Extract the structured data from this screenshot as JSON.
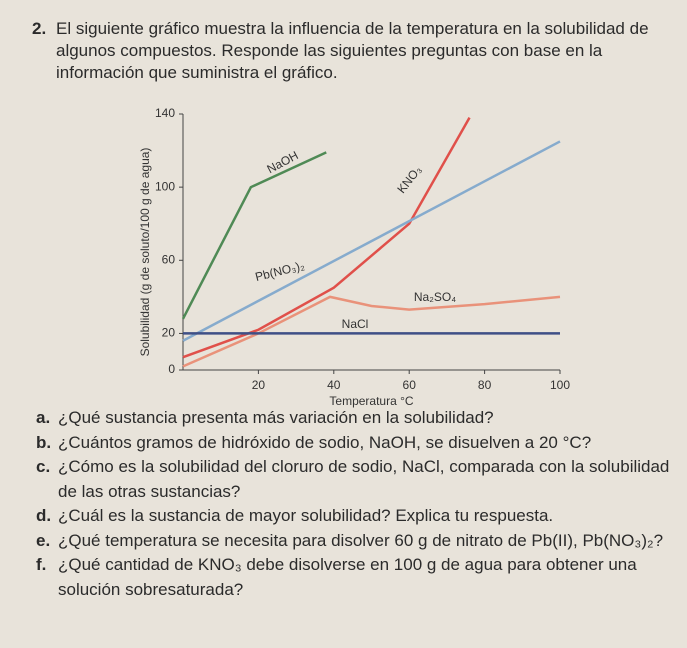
{
  "question": {
    "number": "2.",
    "text": "El siguiente gráfico muestra la influencia de la temperatura en la solubilidad de algunos compuestos. Responde las siguientes preguntas con base en la información que suministra el gráfico."
  },
  "chart_data": {
    "type": "line",
    "x_label": "Temperatura °C",
    "y_label": "Solubilidad (g de soluto/100 g de agua)",
    "xlim": [
      0,
      100
    ],
    "ylim": [
      0,
      140
    ],
    "xticks": [
      20,
      40,
      60,
      80,
      100
    ],
    "yticks": [
      0,
      20,
      60,
      100,
      140
    ],
    "series": [
      {
        "name": "NaOH",
        "color": "#4f8a55",
        "x": [
          0,
          18,
          38
        ],
        "values": [
          28,
          100,
          119
        ]
      },
      {
        "name": "KNO₃",
        "color": "#e0504a",
        "x": [
          0,
          20,
          40,
          60,
          76
        ],
        "values": [
          7,
          22,
          45,
          80,
          138
        ]
      },
      {
        "name": "Pb(NO₃)₂",
        "color": "#86abcd",
        "x": [
          0,
          100
        ],
        "values": [
          16,
          125
        ]
      },
      {
        "name": "Na₂SO₄",
        "color": "#e9927a",
        "x": [
          0,
          20,
          39,
          50,
          60,
          80,
          100
        ],
        "values": [
          2,
          20,
          40,
          35,
          33,
          36,
          40
        ]
      },
      {
        "name": "NaCl",
        "color": "#3e4f86",
        "x": [
          0,
          100
        ],
        "values": [
          20,
          20
        ]
      }
    ]
  },
  "items": [
    {
      "letter": "a.",
      "text": "¿Qué sustancia presenta más variación en la solubilidad?"
    },
    {
      "letter": "b.",
      "text": "¿Cuántos gramos de hidróxido de sodio, NaOH, se disuelven a 20 °C?"
    },
    {
      "letter": "c.",
      "text": "¿Cómo es la solubilidad del cloruro de sodio, NaCl, comparada con la solubilidad de las otras sustancias?"
    },
    {
      "letter": "d.",
      "text": "¿Cuál es la sustancia de mayor solubilidad? Explica tu respuesta."
    },
    {
      "letter": "e.",
      "text": "¿Qué temperatura se necesita para disolver 60 g de nitrato de Pb(II), Pb(NO₃)₂?"
    },
    {
      "letter": "f.",
      "text": "¿Qué cantidad de KNO₃ debe disolverse en 100 g de agua para obtener una solución sobresaturada?"
    }
  ]
}
